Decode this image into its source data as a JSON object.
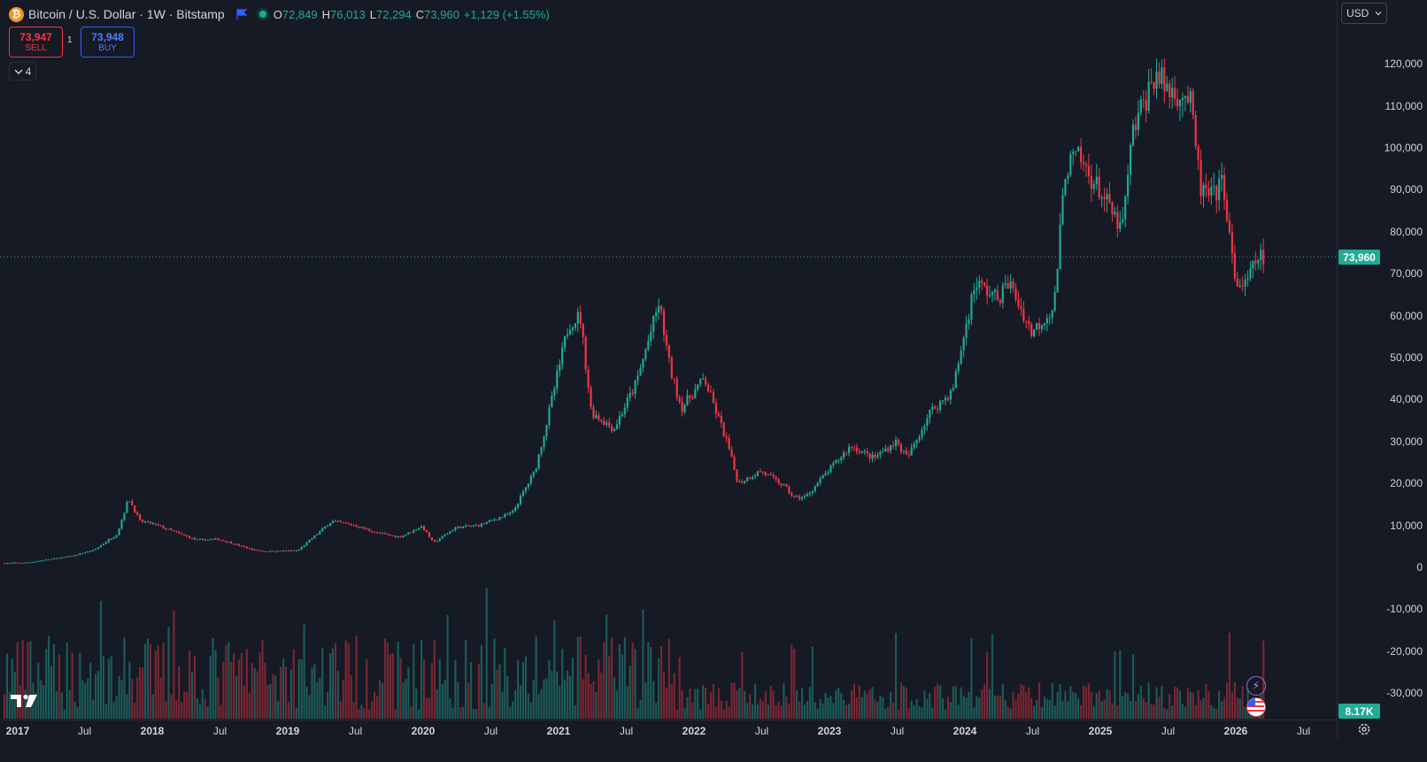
{
  "header": {
    "symbol_icon": "bitcoin-icon",
    "title": "Bitcoin / U.S. Dollar · 1W · Bitstamp",
    "ohlc": {
      "o_label": "O",
      "o": "72,849",
      "h_label": "H",
      "h": "76,013",
      "l_label": "L",
      "l": "72,294",
      "c_label": "C",
      "c": "73,960",
      "change": "+1,129 (+1.55%)"
    }
  },
  "trade": {
    "sell_price": "73,947",
    "sell_label": "SELL",
    "spread": "1",
    "buy_price": "73,948",
    "buy_label": "BUY"
  },
  "indicators_count": "4",
  "price_axis": {
    "currency": "USD",
    "ticks": [
      "120,000",
      "110,000",
      "100,000",
      "90,000",
      "80,000",
      "70,000",
      "60,000",
      "50,000",
      "40,000",
      "30,000",
      "20,000",
      "10,000",
      "0",
      "-10,000",
      "-20,000",
      "-30,000"
    ],
    "last_price_label": "73,960",
    "volume_label": "8.17K"
  },
  "time_axis": {
    "ticks": [
      "2017",
      "Jul",
      "2018",
      "Jul",
      "2019",
      "Jul",
      "2020",
      "Jul",
      "2021",
      "Jul",
      "2022",
      "Jul",
      "2023",
      "Jul",
      "2024",
      "Jul",
      "2025",
      "Jul",
      "2026",
      "Jul"
    ]
  },
  "colors": {
    "up": "#22ab94",
    "down": "#f23645",
    "background": "#161a25",
    "text": "#d1d4dc"
  },
  "chart_data": {
    "type": "candlestick",
    "interval": "1W",
    "y_range": [
      -35000,
      127000
    ],
    "x_range": [
      "2017-01",
      "2026-07"
    ],
    "last_price": 73960,
    "price_path_points": [
      [
        "2017-01",
        1000
      ],
      [
        "2017-03",
        1100
      ],
      [
        "2017-05",
        1900
      ],
      [
        "2017-07",
        2700
      ],
      [
        "2017-09",
        4200
      ],
      [
        "2017-11",
        8000
      ],
      [
        "2017-12",
        16500
      ],
      [
        "2018-01",
        11000
      ],
      [
        "2018-02",
        10500
      ],
      [
        "2018-04",
        8500
      ],
      [
        "2018-06",
        6500
      ],
      [
        "2018-08",
        6700
      ],
      [
        "2018-11",
        4200
      ],
      [
        "2018-12",
        3800
      ],
      [
        "2019-03",
        4000
      ],
      [
        "2019-06",
        11000
      ],
      [
        "2019-08",
        10000
      ],
      [
        "2019-10",
        8200
      ],
      [
        "2019-12",
        7200
      ],
      [
        "2020-02",
        9800
      ],
      [
        "2020-03",
        5800
      ],
      [
        "2020-05",
        9500
      ],
      [
        "2020-07",
        10000
      ],
      [
        "2020-10",
        13000
      ],
      [
        "2020-12",
        23000
      ],
      [
        "2021-01",
        34000
      ],
      [
        "2021-03",
        58000
      ],
      [
        "2021-04",
        60000
      ],
      [
        "2021-05",
        37000
      ],
      [
        "2021-07",
        33000
      ],
      [
        "2021-09",
        44000
      ],
      [
        "2021-11",
        63000
      ],
      [
        "2021-12",
        47000
      ],
      [
        "2022-01",
        38000
      ],
      [
        "2022-03",
        45000
      ],
      [
        "2022-05",
        30000
      ],
      [
        "2022-06",
        20000
      ],
      [
        "2022-08",
        23000
      ],
      [
        "2022-10",
        19500
      ],
      [
        "2022-11",
        16500
      ],
      [
        "2022-12",
        16800
      ],
      [
        "2023-02",
        23000
      ],
      [
        "2023-04",
        29000
      ],
      [
        "2023-06",
        26000
      ],
      [
        "2023-08",
        30000
      ],
      [
        "2023-09",
        26000
      ],
      [
        "2023-11",
        37000
      ],
      [
        "2024-01",
        42000
      ],
      [
        "2024-03",
        68000
      ],
      [
        "2024-05",
        64000
      ],
      [
        "2024-06",
        68000
      ],
      [
        "2024-08",
        56000
      ],
      [
        "2024-10",
        62000
      ],
      [
        "2024-11",
        95000
      ],
      [
        "2024-12",
        98000
      ],
      [
        "2025-02",
        90000
      ],
      [
        "2025-04",
        80000
      ],
      [
        "2025-05",
        104000
      ],
      [
        "2025-07",
        118000
      ],
      [
        "2025-08",
        114000
      ],
      [
        "2025-10",
        112000
      ],
      [
        "2025-11",
        90000
      ],
      [
        "2025-12",
        88000
      ],
      [
        "2026-01",
        92000
      ],
      [
        "2026-02",
        68000
      ],
      [
        "2026-03",
        67000
      ],
      [
        "2026-04",
        73960
      ]
    ]
  },
  "events": {
    "event_1_icon": "lightning-sparkle-icon",
    "event_2_icon": "us-flag-icon"
  }
}
